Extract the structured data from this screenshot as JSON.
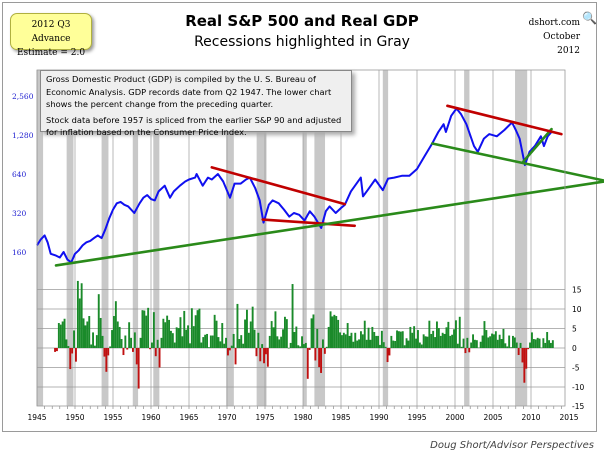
{
  "header": {
    "title": "Real S&P 500 and Real GDP",
    "subtitle": "Recessions highlighted in Gray",
    "badge_line1": "2012 Q3 Advance",
    "badge_line2": "Estimate = 2.0",
    "source": "dshort.com",
    "date": "October 2012"
  },
  "note": {
    "p1": "Gross Domestic Product (GDP) is compiled by the U. S. Bureau of Economic Analysis.  GDP records date from Q2 1947. The lower chart shows the percent change from the preceding quarter.",
    "p2": "Stock data before 1957 is spliced from the earlier S&P 90 and adjusted for inflation based on the Consumer Price Index."
  },
  "footer": "Doug Short/Advisor Perspectives",
  "colors": {
    "sp": "#1010f0",
    "pos": "#1a8a2a",
    "neg": "#c01010",
    "recession": "#c8c8c8",
    "trend_red": "#c00000",
    "trend_green": "#2a8a1a"
  },
  "chart_data": [
    {
      "type": "line",
      "name": "Real S&P 500",
      "yscale": "log2",
      "yticks": [
        160,
        320,
        640,
        1280,
        2560
      ],
      "ytick_labels": [
        "160",
        "320",
        "640",
        "1,280",
        "2,560"
      ],
      "points": [
        [
          1945,
          180
        ],
        [
          1945.5,
          200
        ],
        [
          1946,
          215
        ],
        [
          1946.4,
          190
        ],
        [
          1946.8,
          155
        ],
        [
          1947.5,
          150
        ],
        [
          1948,
          145
        ],
        [
          1948.5,
          160
        ],
        [
          1949,
          140
        ],
        [
          1949.5,
          133
        ],
        [
          1950,
          155
        ],
        [
          1950.5,
          165
        ],
        [
          1951,
          180
        ],
        [
          1951.5,
          190
        ],
        [
          1952,
          195
        ],
        [
          1952.5,
          205
        ],
        [
          1953,
          215
        ],
        [
          1953.5,
          205
        ],
        [
          1954,
          240
        ],
        [
          1954.5,
          290
        ],
        [
          1955,
          340
        ],
        [
          1955.5,
          380
        ],
        [
          1956,
          390
        ],
        [
          1956.5,
          370
        ],
        [
          1957,
          360
        ],
        [
          1957.8,
          320
        ],
        [
          1958.5,
          380
        ],
        [
          1959,
          420
        ],
        [
          1959.5,
          440
        ],
        [
          1960,
          410
        ],
        [
          1960.5,
          400
        ],
        [
          1961,
          470
        ],
        [
          1961.8,
          520
        ],
        [
          1962.5,
          420
        ],
        [
          1963,
          470
        ],
        [
          1963.8,
          520
        ],
        [
          1964.5,
          560
        ],
        [
          1965,
          580
        ],
        [
          1965.8,
          600
        ],
        [
          1966,
          640
        ],
        [
          1966.8,
          520
        ],
        [
          1967.5,
          600
        ],
        [
          1968,
          580
        ],
        [
          1968.8,
          640
        ],
        [
          1969.5,
          560
        ],
        [
          1970.4,
          420
        ],
        [
          1971,
          540
        ],
        [
          1971.8,
          540
        ],
        [
          1972.5,
          580
        ],
        [
          1973,
          600
        ],
        [
          1973.7,
          500
        ],
        [
          1974.3,
          400
        ],
        [
          1974.8,
          270
        ],
        [
          1975.5,
          370
        ],
        [
          1976,
          400
        ],
        [
          1976.8,
          380
        ],
        [
          1977.5,
          340
        ],
        [
          1978.2,
          300
        ],
        [
          1978.8,
          320
        ],
        [
          1979.5,
          310
        ],
        [
          1980.2,
          280
        ],
        [
          1980.9,
          330
        ],
        [
          1981.5,
          300
        ],
        [
          1982.4,
          245
        ],
        [
          1983,
          330
        ],
        [
          1983.5,
          360
        ],
        [
          1984.3,
          320
        ],
        [
          1985,
          350
        ],
        [
          1985.5,
          370
        ],
        [
          1986.3,
          470
        ],
        [
          1987.6,
          600
        ],
        [
          1987.9,
          430
        ],
        [
          1988.5,
          480
        ],
        [
          1989.5,
          580
        ],
        [
          1990.5,
          480
        ],
        [
          1991.2,
          590
        ],
        [
          1992,
          600
        ],
        [
          1993,
          620
        ],
        [
          1994,
          620
        ],
        [
          1995,
          700
        ],
        [
          1996,
          880
        ],
        [
          1997,
          1100
        ],
        [
          1997.8,
          1350
        ],
        [
          1998.5,
          1550
        ],
        [
          1998.8,
          1350
        ],
        [
          1999.5,
          1800
        ],
        [
          2000.2,
          2050
        ],
        [
          2000.8,
          1850
        ],
        [
          2001.5,
          1550
        ],
        [
          2002.5,
          1050
        ],
        [
          2003,
          950
        ],
        [
          2003.8,
          1200
        ],
        [
          2004.5,
          1300
        ],
        [
          2005.5,
          1250
        ],
        [
          2006.5,
          1400
        ],
        [
          2007.5,
          1600
        ],
        [
          2008,
          1400
        ],
        [
          2008.5,
          1200
        ],
        [
          2009.2,
          750
        ],
        [
          2009.8,
          950
        ],
        [
          2010.5,
          1050
        ],
        [
          2011.3,
          1250
        ],
        [
          2011.7,
          1050
        ],
        [
          2012.2,
          1250
        ],
        [
          2012.7,
          1350
        ]
      ],
      "trendlines": [
        {
          "color": "red",
          "from": [
            1968,
            720
          ],
          "to": [
            1985.5,
            375
          ]
        },
        {
          "color": "red",
          "from": [
            1974.7,
            285
          ],
          "to": [
            1986.8,
            255
          ]
        },
        {
          "color": "green",
          "from": [
            1947.5,
            126
          ],
          "to": [
            2019.6,
            560
          ]
        },
        {
          "color": "green",
          "from": [
            1997,
            1100
          ],
          "to": [
            2019.6,
            570
          ]
        },
        {
          "color": "green",
          "from": [
            2009,
            800
          ],
          "to": [
            2012.7,
            1420
          ]
        },
        {
          "color": "red",
          "from": [
            1999,
            2150
          ],
          "to": [
            2014,
            1300
          ]
        }
      ]
    },
    {
      "type": "bar",
      "name": "Real GDP % change from preceding quarter (annualized)",
      "ylim": [
        -15,
        15
      ],
      "yticks": [
        15,
        10,
        5,
        0,
        -5,
        -10,
        -15
      ],
      "ytick_labels": [
        "15",
        "10",
        "5",
        "0",
        "-5",
        "-10",
        "-15"
      ],
      "x_start": 1947.25,
      "x_step": 0.25,
      "values": [
        -1.0,
        -0.8,
        6.4,
        6.0,
        6.8,
        7.5,
        2.2,
        0.5,
        -5.4,
        -1.4,
        4.5,
        -3.5,
        17.2,
        12.7,
        16.6,
        7.6,
        5.8,
        6.8,
        8.2,
        0.9,
        4.0,
        0.6,
        3.3,
        13.8,
        7.7,
        3.1,
        -2.2,
        -6.1,
        -1.9,
        0.4,
        4.6,
        8.2,
        12.0,
        6.8,
        5.4,
        2.3,
        -1.8,
        3.2,
        -0.4,
        6.6,
        2.6,
        -1.0,
        4.0,
        -4.2,
        -10.4,
        2.6,
        9.7,
        9.6,
        8.3,
        10.3,
        -0.3,
        1.4,
        9.2,
        -2.1,
        2.1,
        -5.0,
        2.6,
        7.5,
        6.6,
        8.3,
        7.2,
        4.4,
        3.8,
        1.4,
        5.3,
        5.1,
        7.9,
        3.0,
        9.5,
        4.7,
        5.8,
        1.2,
        10.2,
        5.6,
        8.4,
        9.7,
        10.1,
        1.4,
        2.8,
        3.4,
        3.6,
        0.2,
        3.2,
        3.2,
        8.5,
        7.0,
        2.8,
        1.7,
        6.4,
        1.1,
        2.6,
        -1.9,
        -0.6,
        0.6,
        3.6,
        -4.2,
        11.3,
        2.3,
        3.3,
        1.1,
        7.3,
        9.8,
        3.9,
        6.8,
        10.6,
        4.7,
        -2.1,
        3.9,
        -3.4,
        1.0,
        -3.9,
        -1.6,
        -4.8,
        3.1,
        6.9,
        5.3,
        9.4,
        3.0,
        2.2,
        2.9,
        4.8,
        8.0,
        7.4,
        0.0,
        1.3,
        16.4,
        4.1,
        5.5,
        0.7,
        0.4,
        3.0,
        1.0,
        1.3,
        -7.9,
        -0.5,
        7.6,
        8.6,
        -3.2,
        4.9,
        -4.9,
        -6.4,
        2.2,
        -1.5,
        0.3,
        5.4,
        9.4,
        8.1,
        8.5,
        8.2,
        7.2,
        4.0,
        3.3,
        3.9,
        3.5,
        6.4,
        3.1,
        3.9,
        1.6,
        3.9,
        1.9,
        2.2,
        4.3,
        3.5,
        7.0,
        2.1,
        5.2,
        2.1,
        5.4,
        4.1,
        3.1,
        3.1,
        0.8,
        4.4,
        1.5,
        0.3,
        -3.6,
        -1.9,
        3.1,
        1.9,
        1.8,
        4.5,
        4.3,
        4.2,
        4.3,
        0.7,
        2.5,
        1.9,
        5.4,
        3.9,
        5.6,
        2.4,
        4.6,
        1.4,
        0.9,
        3.5,
        3.0,
        2.9,
        7.0,
        3.6,
        4.4,
        2.8,
        6.8,
        5.1,
        3.1,
        3.9,
        3.6,
        5.3,
        6.7,
        3.1,
        3.4,
        4.8,
        7.1,
        1.1,
        8.0,
        0.3,
        2.4,
        -1.3,
        2.6,
        -1.1,
        1.4,
        3.5,
        2.1,
        2.0,
        0.1,
        1.6,
        3.2,
        6.9,
        4.6,
        2.7,
        3.0,
        3.7,
        3.5,
        4.3,
        2.1,
        3.4,
        2.3,
        4.9,
        1.2,
        0.4,
        3.2,
        0.2,
        3.1,
        2.7,
        1.4,
        -1.8,
        1.3,
        -3.7,
        -8.9,
        -5.3,
        -0.3,
        1.4,
        4.0,
        2.3,
        2.2,
        2.6,
        2.4,
        0.1,
        2.5,
        1.3,
        4.1,
        2.0,
        1.3,
        2.0
      ]
    },
    {
      "type": "axis",
      "xticks": [
        1945,
        1950,
        1955,
        1960,
        1965,
        1970,
        1975,
        1980,
        1985,
        1990,
        1995,
        2000,
        2005,
        2010,
        2015
      ],
      "xlim": [
        1945,
        2014.5
      ],
      "recessions": [
        [
          1944.6,
          1945.8
        ],
        [
          1948.9,
          1949.8
        ],
        [
          1953.5,
          1954.4
        ],
        [
          1957.6,
          1958.3
        ],
        [
          1960.3,
          1961.1
        ],
        [
          1969.9,
          1970.9
        ],
        [
          1973.9,
          1975.2
        ],
        [
          1980.0,
          1980.5
        ],
        [
          1981.5,
          1982.9
        ],
        [
          1990.5,
          1991.2
        ],
        [
          2001.2,
          2001.9
        ],
        [
          2007.9,
          2009.5
        ]
      ]
    }
  ]
}
